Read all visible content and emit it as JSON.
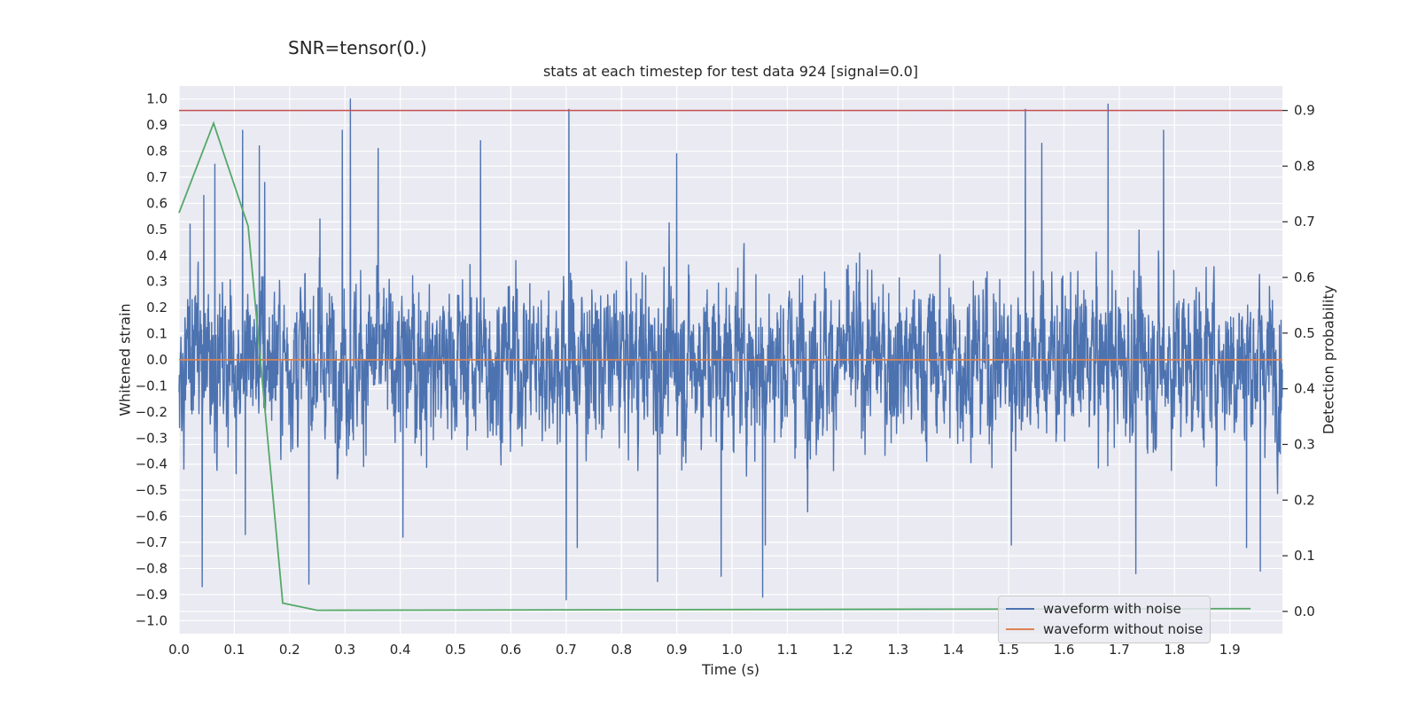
{
  "suptitle": "SNR=tensor(0.)",
  "chart_data": {
    "type": "line",
    "title": "stats at each timestep for test data 924 [signal=0.0]",
    "xlabel": "Time (s)",
    "ylabel_left": "Whitened strain",
    "ylabel_right": "Detection probability",
    "xlim": [
      0.0,
      1.995
    ],
    "ylim_left": [
      -1.05,
      1.05
    ],
    "ylim_right": [
      -0.04,
      0.944
    ],
    "x_ticks": [
      "0.0",
      "0.1",
      "0.2",
      "0.3",
      "0.4",
      "0.5",
      "0.6",
      "0.7",
      "0.8",
      "0.9",
      "1.0",
      "1.1",
      "1.2",
      "1.3",
      "1.4",
      "1.5",
      "1.6",
      "1.7",
      "1.8",
      "1.9"
    ],
    "y_ticks_left": [
      "1.0",
      "0.9",
      "0.8",
      "0.7",
      "0.6",
      "0.5",
      "0.4",
      "0.3",
      "0.2",
      "0.1",
      "0.0",
      "−0.1",
      "−0.2",
      "−0.3",
      "−0.4",
      "−0.5",
      "−0.6",
      "−0.7",
      "−0.8",
      "−0.9",
      "−1.0"
    ],
    "y_ticks_right": [
      "0.9",
      "0.8",
      "0.7",
      "0.6",
      "0.5",
      "0.4",
      "0.3",
      "0.2",
      "0.1",
      "0.0"
    ],
    "grid": true,
    "legend_position": "lower-right",
    "series": [
      {
        "name": "waveform with noise",
        "axis": "left",
        "color": "#4c72b0",
        "x_range": [
          0.0,
          1.995
        ],
        "n_samples": 4096,
        "note_values_envelope": "noise-like, approximately between -0.92 and 1.0",
        "peaks": [
          {
            "x": 0.02,
            "y": 0.52
          },
          {
            "x": 0.045,
            "y": 0.63
          },
          {
            "x": 0.042,
            "y": -0.87
          },
          {
            "x": 0.065,
            "y": 0.75
          },
          {
            "x": 0.115,
            "y": 0.88
          },
          {
            "x": 0.12,
            "y": -0.67
          },
          {
            "x": 0.145,
            "y": 0.82
          },
          {
            "x": 0.155,
            "y": 0.68
          },
          {
            "x": 0.235,
            "y": -0.86
          },
          {
            "x": 0.255,
            "y": 0.54
          },
          {
            "x": 0.295,
            "y": 0.88
          },
          {
            "x": 0.31,
            "y": 1.0
          },
          {
            "x": 0.36,
            "y": 0.81
          },
          {
            "x": 0.405,
            "y": -0.68
          },
          {
            "x": 0.545,
            "y": 0.84
          },
          {
            "x": 0.7,
            "y": -0.92
          },
          {
            "x": 0.705,
            "y": 0.96
          },
          {
            "x": 0.72,
            "y": -0.72
          },
          {
            "x": 0.865,
            "y": -0.85
          },
          {
            "x": 0.9,
            "y": 0.79
          },
          {
            "x": 0.98,
            "y": -0.83
          },
          {
            "x": 1.055,
            "y": -0.91
          },
          {
            "x": 1.06,
            "y": -0.71
          },
          {
            "x": 1.53,
            "y": 0.96
          },
          {
            "x": 1.505,
            "y": -0.71
          },
          {
            "x": 1.56,
            "y": 0.83
          },
          {
            "x": 1.68,
            "y": 0.98
          },
          {
            "x": 1.73,
            "y": -0.82
          },
          {
            "x": 1.78,
            "y": 0.88
          },
          {
            "x": 1.93,
            "y": -0.72
          },
          {
            "x": 1.955,
            "y": -0.81
          }
        ]
      },
      {
        "name": "waveform without noise",
        "axis": "left",
        "color": "#dd8452",
        "x": [
          0.0,
          1.995
        ],
        "y": [
          0.0,
          0.0
        ]
      },
      {
        "name": "",
        "axis": "right",
        "color": "#55a868",
        "x": [
          0.0,
          0.0625,
          0.125,
          0.1875,
          0.25,
          1.9375
        ],
        "y": [
          0.716,
          0.877,
          0.692,
          0.015,
          0.002,
          0.005
        ]
      },
      {
        "name": "",
        "axis": "right",
        "color": "#c44e52",
        "x": [
          0.0,
          1.995
        ],
        "y": [
          0.9,
          0.9
        ]
      }
    ]
  }
}
